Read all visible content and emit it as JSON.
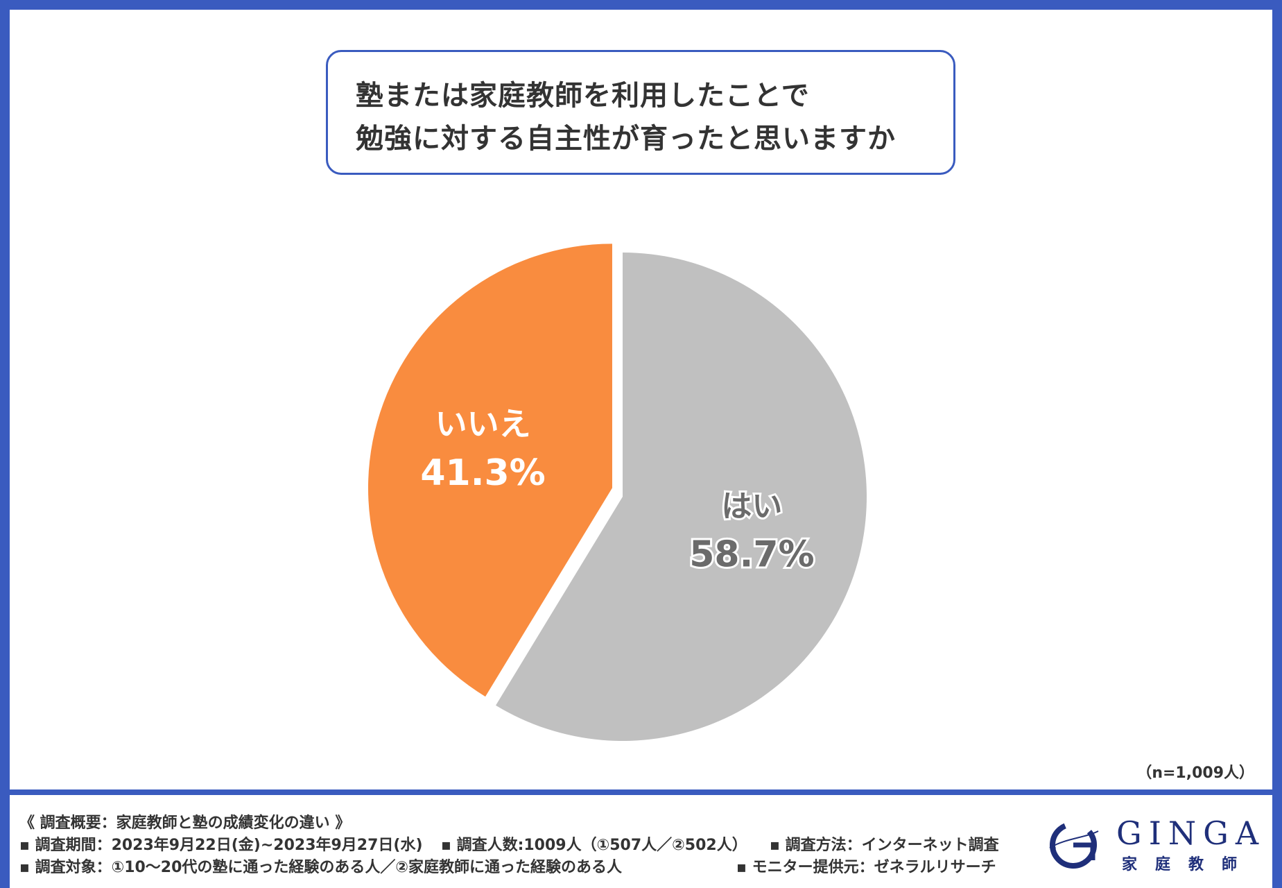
{
  "title": {
    "line1": "塾または家庭教師を利用したことで",
    "line2": "勉強に対する自主性が育ったと思いますか"
  },
  "colors": {
    "frame": "#3a5bbf",
    "yes": "#c0c0c0",
    "no": "#f98c3f",
    "yes_text": "#6b6b6b",
    "no_text": "#ffffff",
    "logo": "#1f2f7a"
  },
  "chart_data": {
    "type": "pie",
    "slices": [
      {
        "label": "はい",
        "value": 58.7,
        "value_label": "58.7%",
        "color": "#c0c0c0"
      },
      {
        "label": "いいえ",
        "value": 41.3,
        "value_label": "41.3%",
        "color": "#f98c3f",
        "exploded": true
      }
    ],
    "start": "top",
    "direction": "clockwise"
  },
  "sample_note": "（n=1,009人）",
  "footer": {
    "heading": "《 調査概要：家庭教師と塾の成績変化の違い 》",
    "period": "▪ 調査期間：2023年9月22日(金)~2023年9月27日(水)",
    "count": "▪ 調査人数:1009人（①507人／②502人）",
    "method": "▪ 調査方法：インターネット調査",
    "target": "▪ 調査対象：①10～20代の塾に通った経験のある人／②家庭教師に通った経験のある人",
    "provider": "▪ モニター提供元：ゼネラルリサーチ"
  },
  "logo": {
    "word": "GINGA",
    "sub": "家庭教師",
    "icon": "ginga-g-logo-icon"
  }
}
